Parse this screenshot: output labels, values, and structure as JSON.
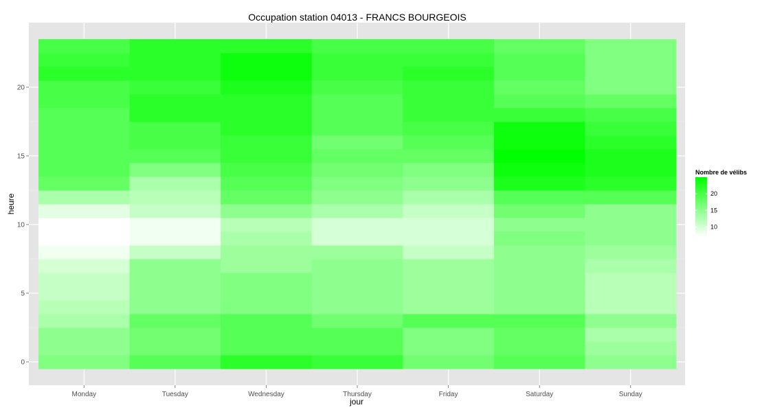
{
  "chart_data": {
    "type": "heatmap",
    "title": "Occupation station 04013 - FRANCS BOURGEOIS",
    "xlabel": "jour",
    "ylabel": "heure",
    "categories": [
      "Monday",
      "Tuesday",
      "Wednesday",
      "Thursday",
      "Friday",
      "Saturday",
      "Sunday"
    ],
    "y": [
      0,
      1,
      2,
      3,
      4,
      5,
      6,
      7,
      8,
      9,
      10,
      11,
      12,
      13,
      14,
      15,
      16,
      17,
      18,
      19,
      20,
      21,
      22,
      23
    ],
    "ylim": [
      -0.5,
      23.5
    ],
    "yticks": [
      0,
      5,
      10,
      15,
      20
    ],
    "values": [
      [
        16,
        15,
        15,
        13,
        12,
        11,
        11,
        10,
        8,
        7,
        7,
        9,
        13,
        18,
        19,
        19,
        19,
        19,
        19,
        20,
        20,
        22,
        21,
        20
      ],
      [
        19,
        17,
        17,
        18,
        15,
        15,
        15,
        15,
        11,
        8,
        8,
        11,
        12,
        13,
        16,
        19,
        20,
        20,
        22,
        22,
        21,
        22,
        22,
        22
      ],
      [
        22,
        19,
        19,
        19,
        16,
        16,
        16,
        14,
        14,
        13,
        12,
        15,
        18,
        19,
        20,
        21,
        21,
        22,
        22,
        22,
        23,
        24,
        24,
        22
      ],
      [
        21,
        19,
        19,
        17,
        15,
        15,
        15,
        15,
        14,
        10,
        10,
        13,
        15,
        16,
        17,
        18,
        17,
        19,
        19,
        19,
        20,
        21,
        21,
        20
      ],
      [
        17,
        16,
        16,
        19,
        14,
        14,
        14,
        14,
        11,
        10,
        10,
        11,
        13,
        15,
        16,
        18,
        19,
        20,
        21,
        21,
        21,
        22,
        21,
        20
      ],
      [
        19,
        18,
        18,
        19,
        15,
        15,
        15,
        15,
        15,
        16,
        15,
        17,
        19,
        23,
        24,
        25,
        24,
        24,
        21,
        19,
        18,
        19,
        19,
        18
      ],
      [
        15,
        14,
        13,
        15,
        12,
        12,
        12,
        13,
        14,
        15,
        15,
        15,
        19,
        22,
        23,
        23,
        22,
        21,
        20,
        18,
        16,
        16,
        16,
        16
      ]
    ],
    "colorscale": {
      "low": "#ffffff",
      "high": "#00ff00"
    },
    "legend": {
      "title": "Nombre de vélibs",
      "ticks": [
        10,
        15,
        20
      ],
      "placement": "right",
      "range": [
        7,
        25
      ]
    },
    "panel_background": "#e5e5e5",
    "grid": true
  }
}
